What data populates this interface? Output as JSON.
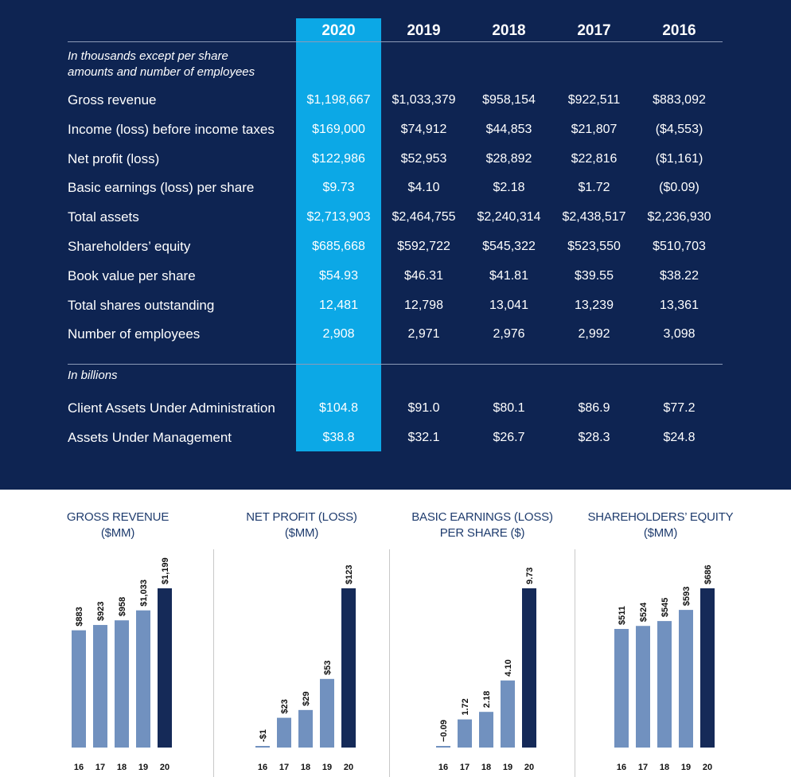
{
  "table": {
    "years": [
      "2020",
      "2019",
      "2018",
      "2017",
      "2016"
    ],
    "note_lines": [
      "In thousands except per share",
      "amounts and number of employees"
    ],
    "rows": [
      {
        "label": "Gross revenue",
        "values": [
          "$1,198,667",
          "$1,033,379",
          "$958,154",
          "$922,511",
          "$883,092"
        ]
      },
      {
        "label": "Income (loss) before income taxes",
        "values": [
          "$169,000",
          "$74,912",
          "$44,853",
          "$21,807",
          "($4,553)"
        ]
      },
      {
        "label": "Net profit (loss)",
        "values": [
          "$122,986",
          "$52,953",
          "$28,892",
          "$22,816",
          "($1,161)"
        ]
      },
      {
        "label": "Basic earnings (loss) per share",
        "values": [
          "$9.73",
          "$4.10",
          "$2.18",
          "$1.72",
          "($0.09)"
        ]
      },
      {
        "label": "Total assets",
        "values": [
          "$2,713,903",
          "$2,464,755",
          "$2,240,314",
          "$2,438,517",
          "$2,236,930"
        ]
      },
      {
        "label": "Shareholders’ equity",
        "values": [
          "$685,668",
          "$592,722",
          "$545,322",
          "$523,550",
          "$510,703"
        ]
      },
      {
        "label": "Book value per share",
        "values": [
          "$54.93",
          "$46.31",
          "$41.81",
          "$39.55",
          "$38.22"
        ]
      },
      {
        "label": "Total shares outstanding",
        "values": [
          "12,481",
          "12,798",
          "13,041",
          "13,239",
          "13,361"
        ]
      },
      {
        "label": "Number of employees",
        "values": [
          "2,908",
          "2,971",
          "2,976",
          "2,992",
          "3,098"
        ]
      }
    ],
    "billions_note": "In billions",
    "billion_rows": [
      {
        "label": "Client Assets Under Administration",
        "values": [
          "$104.8",
          "$91.0",
          "$80.1",
          "$86.9",
          "$77.2"
        ]
      },
      {
        "label": "Assets Under Management",
        "values": [
          "$38.8",
          "$32.1",
          "$26.7",
          "$28.3",
          "$24.8"
        ]
      }
    ]
  },
  "colors": {
    "navy_background": "#0e2452",
    "highlight_column": "#0ca8e6",
    "bar_light": "#7191bf",
    "bar_dark": "#152a58",
    "chart_title": "#1f3c6e"
  },
  "chart_data": [
    {
      "type": "bar",
      "title_lines": [
        "GROSS REVENUE",
        "($MM)"
      ],
      "categories": [
        "16",
        "17",
        "18",
        "19",
        "20"
      ],
      "values": [
        883,
        923,
        958,
        1033,
        1199
      ],
      "data_labels": [
        "$883",
        "$923",
        "$958",
        "$1,033",
        "$1,199"
      ],
      "ylim": [
        0,
        1199
      ],
      "grid": false,
      "highlight_last": true
    },
    {
      "type": "bar",
      "title_lines": [
        "NET PROFIT (LOSS)",
        "($MM)"
      ],
      "categories": [
        "16",
        "17",
        "18",
        "19",
        "20"
      ],
      "values": [
        -1,
        23,
        29,
        53,
        123
      ],
      "data_labels": [
        "-$1",
        "$23",
        "$29",
        "$53",
        "$123"
      ],
      "ylim": [
        0,
        123
      ],
      "grid": false,
      "highlight_last": true
    },
    {
      "type": "bar",
      "title_lines": [
        "BASIC EARNINGS (LOSS)",
        "PER SHARE ($)"
      ],
      "categories": [
        "16",
        "17",
        "18",
        "19",
        "20"
      ],
      "values": [
        -0.09,
        1.72,
        2.18,
        4.1,
        9.73
      ],
      "data_labels": [
        "−0.09",
        "1.72",
        "2.18",
        "4.10",
        "9.73"
      ],
      "ylim": [
        0,
        9.73
      ],
      "grid": false,
      "highlight_last": true
    },
    {
      "type": "bar",
      "title_lines": [
        "SHAREHOLDERS’ EQUITY",
        "($MM)"
      ],
      "categories": [
        "16",
        "17",
        "18",
        "19",
        "20"
      ],
      "values": [
        511,
        524,
        545,
        593,
        686
      ],
      "data_labels": [
        "$511",
        "$524",
        "$545",
        "$593",
        "$686"
      ],
      "ylim": [
        0,
        686
      ],
      "grid": false,
      "highlight_last": true
    }
  ]
}
